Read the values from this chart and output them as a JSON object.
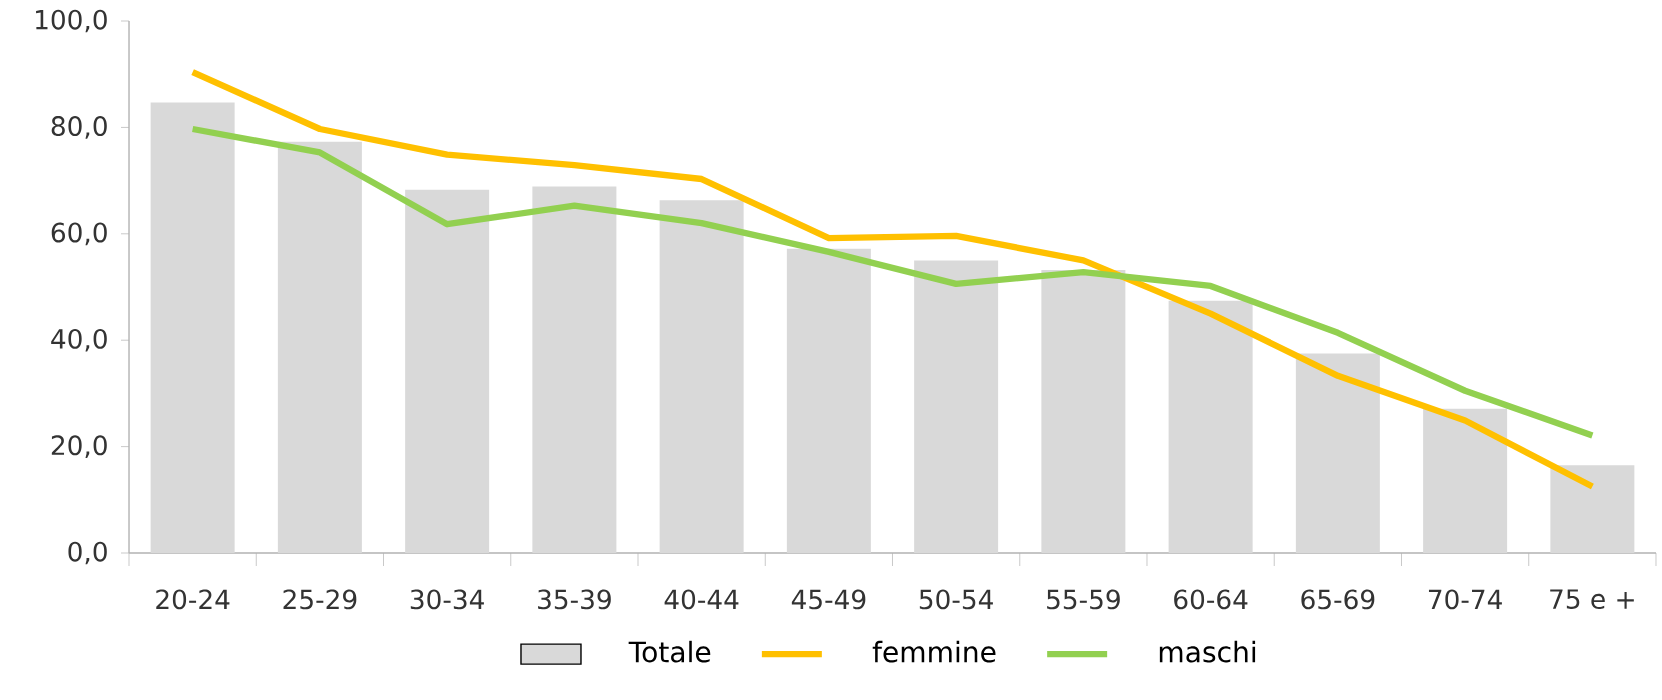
{
  "chart_data": {
    "type": "bar",
    "categories": [
      "20-24",
      "25-29",
      "30-34",
      "35-39",
      "40-44",
      "45-49",
      "50-54",
      "55-59",
      "60-64",
      "65-69",
      "70-74",
      "75 e +"
    ],
    "series": [
      {
        "name": "Totale",
        "color": "#d9d9d9",
        "values": [
          84.7,
          77.3,
          68.3,
          68.9,
          66.3,
          57.2,
          55.0,
          53.2,
          47.4,
          37.5,
          27.1,
          16.5
        ]
      },
      {
        "name": "femmine",
        "type": "line",
        "color": "#ffc000",
        "values": [
          90.4,
          79.7,
          74.9,
          72.9,
          70.3,
          59.2,
          59.6,
          55.0,
          45.0,
          33.3,
          24.9,
          12.5
        ]
      },
      {
        "name": "maschi",
        "type": "line",
        "color": "#92d050",
        "values": [
          79.7,
          75.3,
          61.8,
          65.3,
          62.0,
          56.6,
          50.6,
          52.8,
          50.2,
          41.4,
          30.5,
          22.1
        ]
      }
    ],
    "ylim": [
      0,
      100
    ],
    "yticks": [
      {
        "value": 0,
        "label": "0,0"
      },
      {
        "value": 20,
        "label": "20,0"
      },
      {
        "value": 40,
        "label": "40,0"
      },
      {
        "value": 60,
        "label": "60,0"
      },
      {
        "value": 80,
        "label": "80,0"
      },
      {
        "value": 100,
        "label": "100,0"
      }
    ],
    "legend": "bottom"
  }
}
